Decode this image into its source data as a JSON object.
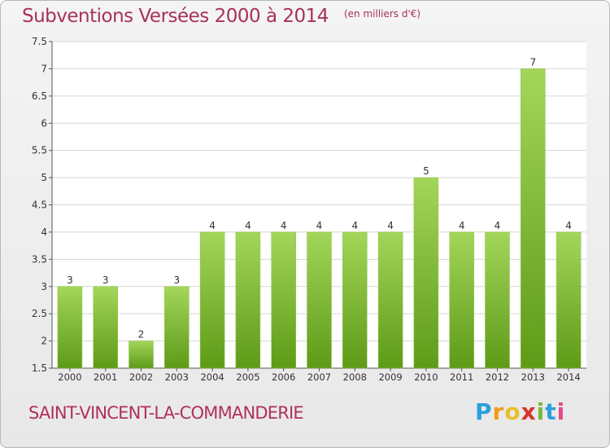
{
  "header": {
    "title": "Subventions Versées 2000 à 2014",
    "unit": "(en milliers d'€)"
  },
  "footer": {
    "commune": "SAINT-VINCENT-LA-COMMANDERIE",
    "logo_letters": [
      "P",
      "r",
      "o",
      "x",
      "i",
      "t",
      "i"
    ],
    "logo_colors": [
      "#2aa0dc",
      "#f39a1e",
      "#e8c02a",
      "#d8342c",
      "#7ab83c",
      "#2aa0dc",
      "#e24a8a"
    ]
  },
  "colors": {
    "accent": "#a8315c",
    "bar_top": "#a3d65a",
    "bar_bottom": "#5e9a18",
    "grid": "#d6d6d6",
    "axis_text": "#333333"
  },
  "chart_data": {
    "type": "bar",
    "categories": [
      "2000",
      "2001",
      "2002",
      "2003",
      "2004",
      "2005",
      "2006",
      "2007",
      "2008",
      "2009",
      "2010",
      "2011",
      "2012",
      "2013",
      "2014"
    ],
    "values": [
      3,
      3,
      2,
      3,
      4,
      4,
      4,
      4,
      4,
      4,
      5,
      4,
      4,
      7,
      4
    ],
    "value_labels": [
      "3",
      "3",
      "2",
      "3",
      "4",
      "4",
      "4",
      "4",
      "4",
      "4",
      "5",
      "4",
      "4",
      "7",
      "4"
    ],
    "ylim": [
      1.5,
      7.5
    ],
    "yticks": [
      "1.5",
      "2",
      "2.5",
      "3",
      "3.5",
      "4",
      "4.5",
      "5",
      "5.5",
      "6",
      "6.5",
      "7",
      "7.5"
    ],
    "grid": true,
    "xlabel": "",
    "ylabel": ""
  }
}
